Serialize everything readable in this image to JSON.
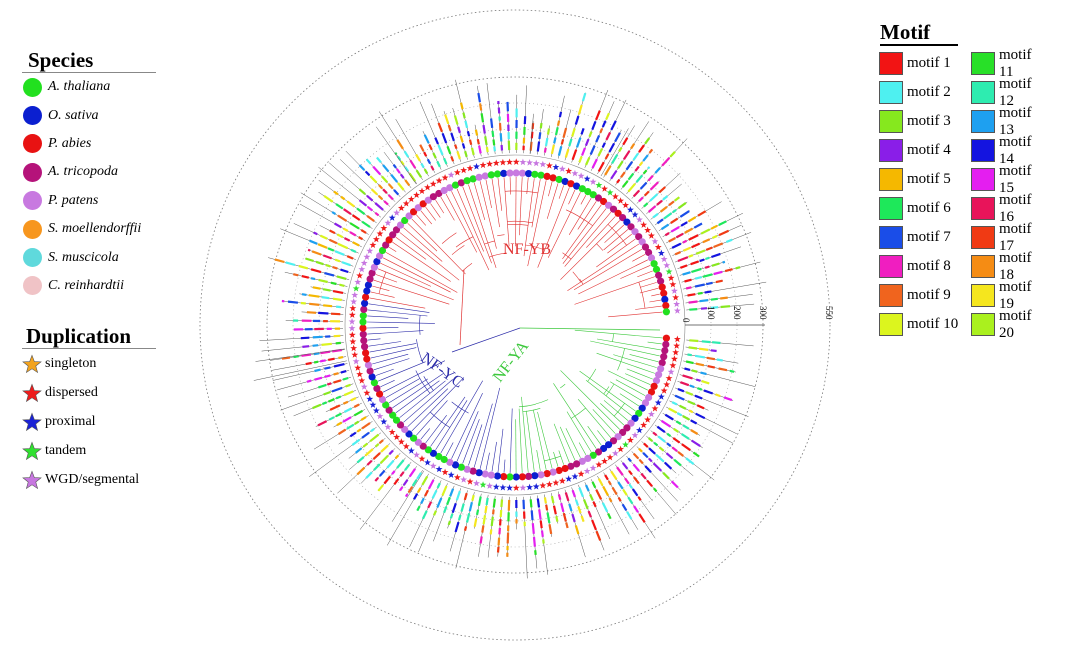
{
  "species_legend": {
    "title": "Species",
    "items": [
      {
        "label": "A. thaliana",
        "color": "#22e01f"
      },
      {
        "label": "O. sativa",
        "color": "#0b1fd0"
      },
      {
        "label": "P. abies",
        "color": "#e81212"
      },
      {
        "label": "A. tricopoda",
        "color": "#b5137a"
      },
      {
        "label": "P. patens",
        "color": "#c879e0"
      },
      {
        "label": "S. moellendorffii",
        "color": "#f7961e"
      },
      {
        "label": "S. muscicola",
        "color": "#5fd9dc"
      },
      {
        "label": "C. reinhardtii",
        "color": "#f0c3c6"
      }
    ]
  },
  "duplication_legend": {
    "title": "Duplication",
    "items": [
      {
        "label": "singleton",
        "color": "#f2a31f"
      },
      {
        "label": "dispersed",
        "color": "#ee1c1c"
      },
      {
        "label": "proximal",
        "color": "#1a22d6"
      },
      {
        "label": "tandem",
        "color": "#30e030"
      },
      {
        "label": "WGD/segmental",
        "color": "#c777e0"
      }
    ]
  },
  "motif_legend": {
    "title": "Motif",
    "items": [
      {
        "label": "motif 1",
        "color": "#f21414"
      },
      {
        "label": "motif 2",
        "color": "#4ef0f0"
      },
      {
        "label": "motif 3",
        "color": "#86e81e"
      },
      {
        "label": "motif 4",
        "color": "#8a1ee8"
      },
      {
        "label": "motif 5",
        "color": "#f5b800"
      },
      {
        "label": "motif 6",
        "color": "#1ee85a"
      },
      {
        "label": "motif 7",
        "color": "#1a4de8"
      },
      {
        "label": "motif 8",
        "color": "#f01ec0"
      },
      {
        "label": "motif 9",
        "color": "#f0641e"
      },
      {
        "label": "motif 10",
        "color": "#dcf51e"
      },
      {
        "label": "motif 11",
        "color": "#28e028"
      },
      {
        "label": "motif 12",
        "color": "#2eecb0"
      },
      {
        "label": "motif 13",
        "color": "#1ea0f0"
      },
      {
        "label": "motif 14",
        "color": "#1414e0"
      },
      {
        "label": "motif 15",
        "color": "#e41ef0"
      },
      {
        "label": "motif 16",
        "color": "#e8145a"
      },
      {
        "label": "motif 17",
        "color": "#f03a14"
      },
      {
        "label": "motif 18",
        "color": "#f58c14"
      },
      {
        "label": "motif 19",
        "color": "#f5e61e"
      },
      {
        "label": "motif 20",
        "color": "#aaf01e"
      }
    ]
  },
  "tree": {
    "clades": [
      {
        "label": "NF-YB",
        "color": "#e03030"
      },
      {
        "label": "NF-YC",
        "color": "#2a2aa8"
      },
      {
        "label": "NF-YA",
        "color": "#3cc83c"
      }
    ],
    "scale_labels": [
      "0",
      "100",
      "200",
      "300",
      "550"
    ]
  }
}
